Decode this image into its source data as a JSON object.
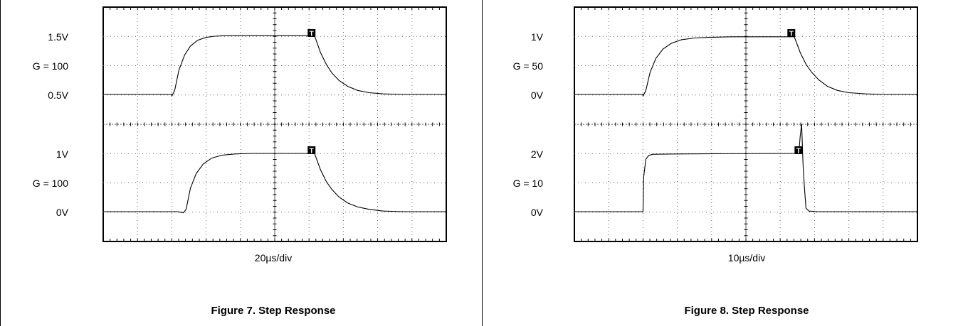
{
  "chart_data": [
    {
      "type": "line",
      "title": "",
      "caption": "Figure 7. Step Response",
      "xlabel": "20µs/div",
      "grid": true,
      "divisions": {
        "x": 10,
        "y": 8
      },
      "trigger_marker": "T",
      "channels": [
        {
          "labels": [
            "1.5V",
            "G = 100",
            "0.5V"
          ],
          "low": 0.5,
          "high": 1.5,
          "points": [
            [
              0,
              0.5
            ],
            [
              48,
              0.5
            ],
            [
              48,
              0.47
            ],
            [
              50,
              0.57
            ],
            [
              53,
              0.92
            ],
            [
              57,
              1.18
            ],
            [
              61,
              1.33
            ],
            [
              66,
              1.43
            ],
            [
              72,
              1.48
            ],
            [
              78,
              1.5
            ],
            [
              86,
              1.51
            ],
            [
              94,
              1.51
            ],
            [
              108,
              1.51
            ],
            [
              148,
              1.51
            ],
            [
              148,
              1.5
            ],
            [
              152,
              1.22
            ],
            [
              156,
              1.02
            ],
            [
              160,
              0.87
            ],
            [
              165,
              0.74
            ],
            [
              171,
              0.64
            ],
            [
              178,
              0.57
            ],
            [
              186,
              0.53
            ],
            [
              196,
              0.51
            ],
            [
              210,
              0.5
            ],
            [
              240,
              0.5
            ]
          ]
        },
        {
          "labels": [
            "1V",
            "G = 100",
            "0V"
          ],
          "low": 0,
          "high": 1,
          "points": [
            [
              0,
              0
            ],
            [
              52,
              0
            ],
            [
              56,
              -0.02
            ],
            [
              58,
              0.04
            ],
            [
              61,
              0.4
            ],
            [
              65,
              0.65
            ],
            [
              70,
              0.82
            ],
            [
              76,
              0.92
            ],
            [
              83,
              0.97
            ],
            [
              92,
              0.99
            ],
            [
              104,
              1
            ],
            [
              148,
              1
            ],
            [
              148,
              0.99
            ],
            [
              152,
              0.72
            ],
            [
              156,
              0.52
            ],
            [
              160,
              0.38
            ],
            [
              165,
              0.25
            ],
            [
              171,
              0.15
            ],
            [
              178,
              0.08
            ],
            [
              186,
              0.04
            ],
            [
              196,
              0.01
            ],
            [
              210,
              0
            ],
            [
              240,
              0
            ]
          ]
        }
      ]
    },
    {
      "type": "line",
      "title": "",
      "caption": "Figure 8. Step Response",
      "xlabel": "10µs/div",
      "grid": true,
      "divisions": {
        "x": 10,
        "y": 8
      },
      "trigger_marker": "T",
      "channels": [
        {
          "labels": [
            "1V",
            "G = 50",
            "0V"
          ],
          "low": 0,
          "high": 1,
          "points": [
            [
              0,
              0
            ],
            [
              48,
              0
            ],
            [
              48,
              -0.03
            ],
            [
              50,
              0.07
            ],
            [
              53,
              0.38
            ],
            [
              57,
              0.62
            ],
            [
              62,
              0.78
            ],
            [
              68,
              0.88
            ],
            [
              75,
              0.94
            ],
            [
              84,
              0.97
            ],
            [
              94,
              0.98
            ],
            [
              110,
              0.99
            ],
            [
              154,
              0.99
            ],
            [
              154,
              0.98
            ],
            [
              158,
              0.72
            ],
            [
              162,
              0.52
            ],
            [
              166,
              0.38
            ],
            [
              171,
              0.25
            ],
            [
              177,
              0.14
            ],
            [
              184,
              0.07
            ],
            [
              192,
              0.03
            ],
            [
              204,
              0.01
            ],
            [
              218,
              0
            ],
            [
              240,
              0
            ]
          ]
        },
        {
          "labels": [
            "2V",
            "G = 10",
            "0V"
          ],
          "low": 0,
          "high": 2,
          "points": [
            [
              0,
              0
            ],
            [
              48,
              0
            ],
            [
              48.5,
              1.2
            ],
            [
              50,
              1.8
            ],
            [
              52,
              1.93
            ],
            [
              55,
              1.97
            ],
            [
              70,
              1.98
            ],
            [
              100,
              1.99
            ],
            [
              157,
              2
            ],
            [
              158,
              2.6
            ],
            [
              159,
              3.0
            ],
            [
              160,
              1.6
            ],
            [
              161,
              0.8
            ],
            [
              162,
              0.12
            ],
            [
              164,
              0.02
            ],
            [
              170,
              0
            ],
            [
              240,
              0
            ]
          ]
        }
      ]
    }
  ]
}
